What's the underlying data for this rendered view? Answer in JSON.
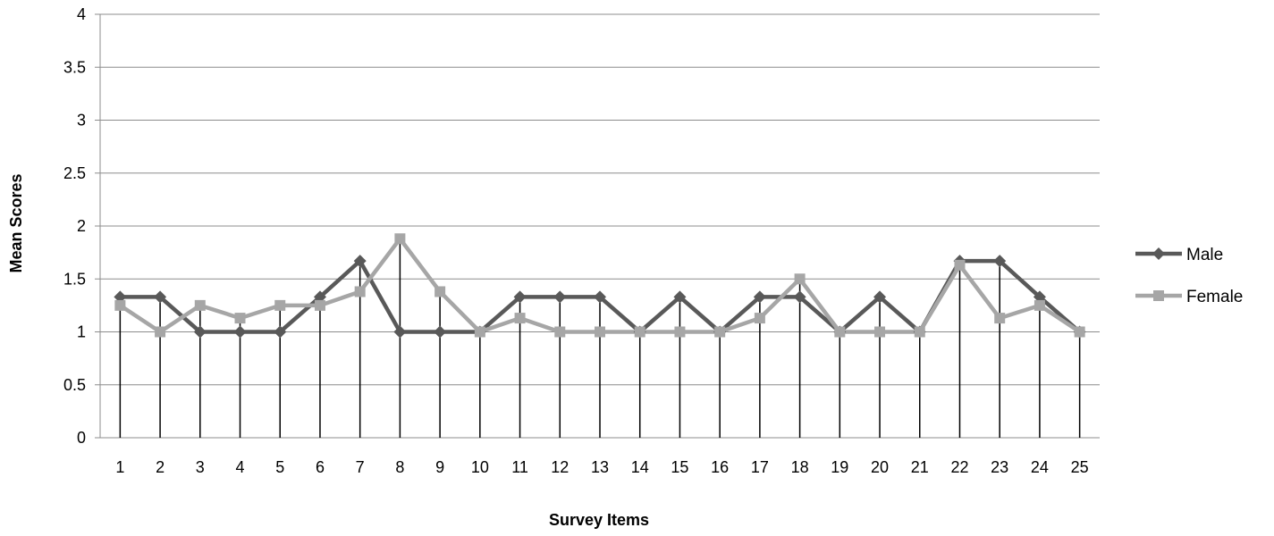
{
  "chart_data": {
    "type": "line",
    "title": "",
    "xlabel": "Survey Items",
    "ylabel": "Mean Scores",
    "categories": [
      "1",
      "2",
      "3",
      "4",
      "5",
      "6",
      "7",
      "8",
      "9",
      "10",
      "11",
      "12",
      "13",
      "14",
      "15",
      "16",
      "17",
      "18",
      "19",
      "20",
      "21",
      "22",
      "23",
      "24",
      "25"
    ],
    "ylim": [
      0,
      4
    ],
    "yticks": [
      "0",
      "0.5",
      "1",
      "1.5",
      "2",
      "2.5",
      "3",
      "3.5",
      "4"
    ],
    "grid": true,
    "drop_lines": true,
    "legend_position": "right",
    "series": [
      {
        "name": "Male",
        "marker": "diamond",
        "color": "#595959",
        "values": [
          1.33,
          1.33,
          1,
          1,
          1,
          1.33,
          1.67,
          1,
          1,
          1,
          1.33,
          1.33,
          1.33,
          1,
          1.33,
          1,
          1.33,
          1.33,
          1,
          1.33,
          1,
          1.67,
          1.67,
          1.33,
          1
        ]
      },
      {
        "name": "Female",
        "marker": "square",
        "color": "#a6a6a6",
        "values": [
          1.25,
          1,
          1.25,
          1.13,
          1.25,
          1.25,
          1.38,
          1.88,
          1.38,
          1,
          1.13,
          1,
          1,
          1,
          1,
          1,
          1.13,
          1.5,
          1,
          1,
          1,
          1.63,
          1.13,
          1.25,
          1
        ]
      }
    ]
  }
}
